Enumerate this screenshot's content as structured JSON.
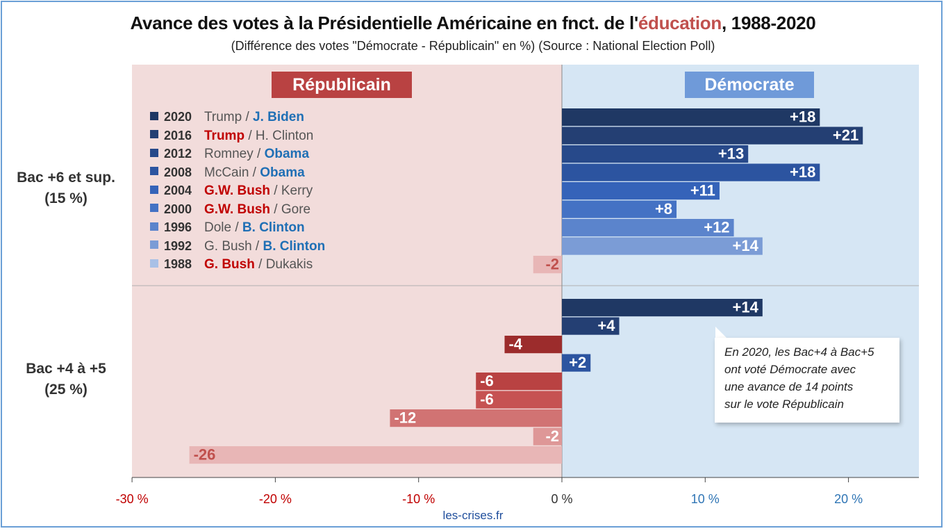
{
  "title_main": "Avance des votes à la Présidentielle Américaine en fnct. de l'",
  "title_highlight": "éducation",
  "title_end": ", 1988-2020",
  "subtitle": "(Différence des votes \"Démocrate - Républicain\" en %) (Source : National Election Poll)",
  "header_rep": "Républicain",
  "header_dem": "Démocrate",
  "legend": [
    {
      "year": "2020",
      "rep": "Trump",
      "dem": "J. Biden",
      "winner": "dem",
      "color": "#1f3864"
    },
    {
      "year": "2016",
      "rep": "Trump",
      "dem": "H. Clinton",
      "winner": "rep",
      "color": "#243f73"
    },
    {
      "year": "2012",
      "rep": "Romney",
      "dem": "Obama",
      "winner": "dem",
      "color": "#27498a"
    },
    {
      "year": "2008",
      "rep": "McCain",
      "dem": "Obama",
      "winner": "dem",
      "color": "#2c54a0"
    },
    {
      "year": "2004",
      "rep": "G.W. Bush",
      "dem": "Kerry",
      "winner": "rep",
      "color": "#3563b9"
    },
    {
      "year": "2000",
      "rep": "G.W. Bush",
      "dem": "Gore",
      "winner": "rep",
      "color": "#4472c4"
    },
    {
      "year": "1996",
      "rep": "Dole",
      "dem": "B. Clinton",
      "winner": "dem",
      "color": "#5b84cc"
    },
    {
      "year": "1992",
      "rep": "G. Bush",
      "dem": "B. Clinton",
      "winner": "dem",
      "color": "#7b9cd6"
    },
    {
      "year": "1988",
      "rep": "G. Bush",
      "dem": "Dukakis",
      "winner": "rep",
      "color": "#a9c0e6"
    }
  ],
  "groups": [
    {
      "label_line1": "Bac +6 et sup.",
      "label_line2": "(15 %)"
    },
    {
      "label_line1": "Bac +4 à +5",
      "label_line2": "(25 %)"
    }
  ],
  "note": [
    "En 2020, les Bac+4 à Bac+5",
    "ont voté Démocrate avec",
    "une avance de 14 points",
    "sur le vote Républicain"
  ],
  "source": "les-crises.fr",
  "chart_data": {
    "type": "bar",
    "orientation": "horizontal",
    "xlim": [
      -30,
      25
    ],
    "x_ticks": [
      -30,
      -20,
      -10,
      0,
      10,
      20
    ],
    "x_tick_labels": [
      "-30 %",
      "-20 %",
      "-10 %",
      "0 %",
      "10 %",
      "20 %"
    ],
    "years": [
      "2020",
      "2016",
      "2012",
      "2008",
      "2004",
      "2000",
      "1996",
      "1992",
      "1988"
    ],
    "series": [
      {
        "values": [
          18,
          21,
          13,
          18,
          11,
          8,
          12,
          14,
          -2
        ],
        "labels": [
          "+18",
          "+21",
          "+13",
          "+18",
          "+11",
          "+8",
          "+12",
          "+14",
          "-2"
        ]
      },
      {
        "values": [
          14,
          4,
          -4,
          2,
          -6,
          -6,
          -12,
          -2,
          -26
        ],
        "labels": [
          "+14",
          "+4",
          "-4",
          "+2",
          "-6",
          "-6",
          "-12",
          "-2",
          "-26"
        ]
      }
    ],
    "colors": {
      "dem": [
        "#1f3864",
        "#243f73",
        "#27498a",
        "#2c54a0",
        "#3563b9",
        "#4472c4",
        "#5b84cc",
        "#7b9cd6",
        "#a9c0e6"
      ],
      "rep": [
        "#7b1c1c",
        "#8b2323",
        "#9c2c2c",
        "#ad3636",
        "#b94242",
        "#c65252",
        "#d17373",
        "#de9797",
        "#e8b6b6"
      ]
    },
    "tick_color_neg": "#c00000",
    "tick_color_pos": "#2f75b5"
  }
}
